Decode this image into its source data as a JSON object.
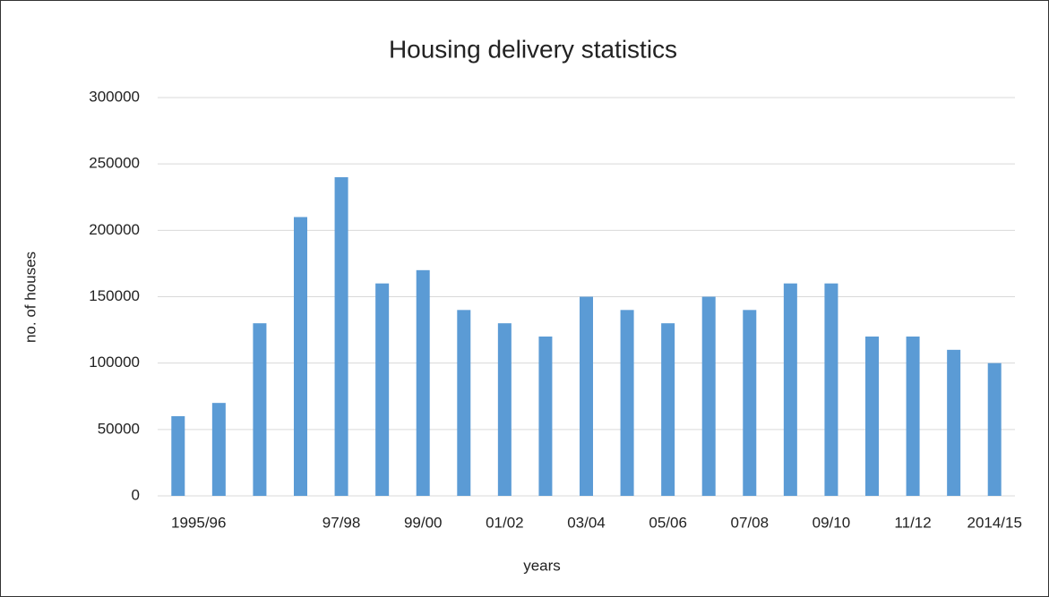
{
  "chart_data": {
    "type": "bar",
    "title": "Housing delivery statistics",
    "x_label": "years",
    "y_label": "no. of houses",
    "categories": [
      "1995/96",
      null,
      null,
      null,
      "97/98",
      null,
      "99/00",
      null,
      "01/02",
      null,
      "03/04",
      null,
      "05/06",
      null,
      "07/08",
      null,
      "09/10",
      null,
      "11/12",
      null,
      "2014/15"
    ],
    "values": [
      60000,
      70000,
      130000,
      210000,
      240000,
      160000,
      170000,
      140000,
      130000,
      120000,
      150000,
      140000,
      130000,
      150000,
      140000,
      160000,
      160000,
      120000,
      120000,
      110000,
      100000
    ],
    "color": "#5b9bd5",
    "ylim": [
      0,
      300000
    ],
    "yticks": [
      0,
      50000,
      100000,
      150000,
      200000,
      250000,
      300000
    ],
    "grid": true
  }
}
